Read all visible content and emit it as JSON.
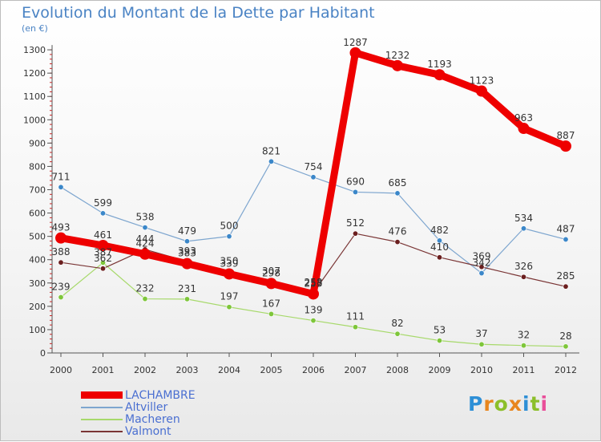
{
  "header": {
    "title": "Evolution du Montant de la Dette par Habitant",
    "subtitle": "(en €)"
  },
  "logo": {
    "text": "Proxiti",
    "letter_colors": [
      "#2e8fd6",
      "#e8861e",
      "#8cbf2a",
      "#e8861e",
      "#2e8fd6",
      "#8cbf2a",
      "#e94f9a"
    ]
  },
  "chart_data": {
    "type": "line",
    "title": "Evolution du Montant de la Dette par Habitant",
    "subtitle": "(en €)",
    "x": [
      "2000",
      "2001",
      "2002",
      "2003",
      "2004",
      "2005",
      "2006",
      "2007",
      "2008",
      "2009",
      "2010",
      "2011",
      "2012"
    ],
    "ylim": [
      0,
      1300
    ],
    "yticks": [
      0,
      100,
      200,
      300,
      400,
      500,
      600,
      700,
      800,
      900,
      1000,
      1100,
      1200,
      1300
    ],
    "grid": false,
    "legend_position": "bottom-left",
    "series": [
      {
        "name": "LACHAMBRE",
        "color": "#ee0000",
        "marker_color": "#ee0000",
        "emphasis": true,
        "values": [
          493,
          461,
          424,
          383,
          339,
          298,
          253,
          1287,
          1232,
          1193,
          1123,
          963,
          887
        ]
      },
      {
        "name": "Altviller",
        "color": "#7ea6cf",
        "marker_color": "#3b87c9",
        "values": [
          711,
          599,
          538,
          479,
          500,
          821,
          754,
          690,
          685,
          482,
          342,
          534,
          487
        ]
      },
      {
        "name": "Macheren",
        "color": "#a7d96b",
        "marker_color": "#7ec63a",
        "values": [
          239,
          387,
          232,
          231,
          197,
          167,
          139,
          111,
          82,
          53,
          37,
          32,
          28
        ]
      },
      {
        "name": "Valmont",
        "color": "#7a3535",
        "marker_color": "#6b1f1f",
        "values": [
          388,
          362,
          444,
          393,
          350,
          307,
          258,
          512,
          476,
          410,
          369,
          326,
          285
        ]
      }
    ]
  }
}
